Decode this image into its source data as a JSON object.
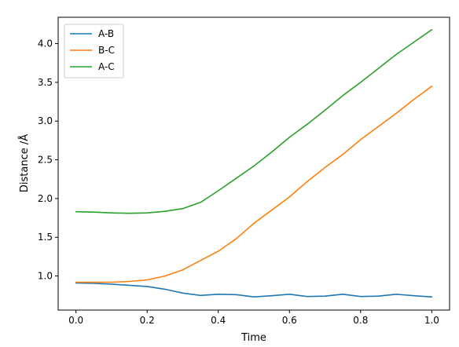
{
  "chart_data": {
    "type": "line",
    "title": "",
    "xlabel": "Time",
    "ylabel": "Distance /Å",
    "xlim": [
      -0.05,
      1.05
    ],
    "ylim": [
      0.56,
      4.34
    ],
    "x_ticks": [
      0.0,
      0.2,
      0.4,
      0.6,
      0.8,
      1.0
    ],
    "x_tick_labels": [
      "0.0",
      "0.2",
      "0.4",
      "0.6",
      "0.8",
      "1.0"
    ],
    "y_ticks": [
      1.0,
      1.5,
      2.0,
      2.5,
      3.0,
      3.5,
      4.0
    ],
    "y_tick_labels": [
      "1.0",
      "1.5",
      "2.0",
      "2.5",
      "3.0",
      "3.5",
      "4.0"
    ],
    "grid": false,
    "legend_position": "top-left",
    "x": [
      0.0,
      0.05,
      0.1,
      0.15,
      0.2,
      0.25,
      0.3,
      0.35,
      0.4,
      0.45,
      0.5,
      0.55,
      0.6,
      0.65,
      0.7,
      0.75,
      0.8,
      0.85,
      0.9,
      0.95,
      1.0
    ],
    "series": [
      {
        "name": "A-B",
        "color": "#1f77b4",
        "values": [
          0.91,
          0.905,
          0.895,
          0.88,
          0.865,
          0.83,
          0.78,
          0.75,
          0.765,
          0.76,
          0.73,
          0.745,
          0.765,
          0.735,
          0.74,
          0.765,
          0.735,
          0.74,
          0.765,
          0.745,
          0.73
        ]
      },
      {
        "name": "B-C",
        "color": "#ff7f0e",
        "values": [
          0.92,
          0.92,
          0.92,
          0.93,
          0.95,
          1.0,
          1.08,
          1.2,
          1.32,
          1.48,
          1.68,
          1.85,
          2.02,
          2.22,
          2.4,
          2.57,
          2.76,
          2.93,
          3.1,
          3.28,
          3.45
        ]
      },
      {
        "name": "A-C",
        "color": "#2ca02c",
        "values": [
          1.83,
          1.825,
          1.815,
          1.81,
          1.815,
          1.835,
          1.87,
          1.95,
          2.1,
          2.26,
          2.42,
          2.6,
          2.79,
          2.96,
          3.14,
          3.33,
          3.5,
          3.68,
          3.86,
          4.02,
          4.18
        ]
      }
    ]
  }
}
